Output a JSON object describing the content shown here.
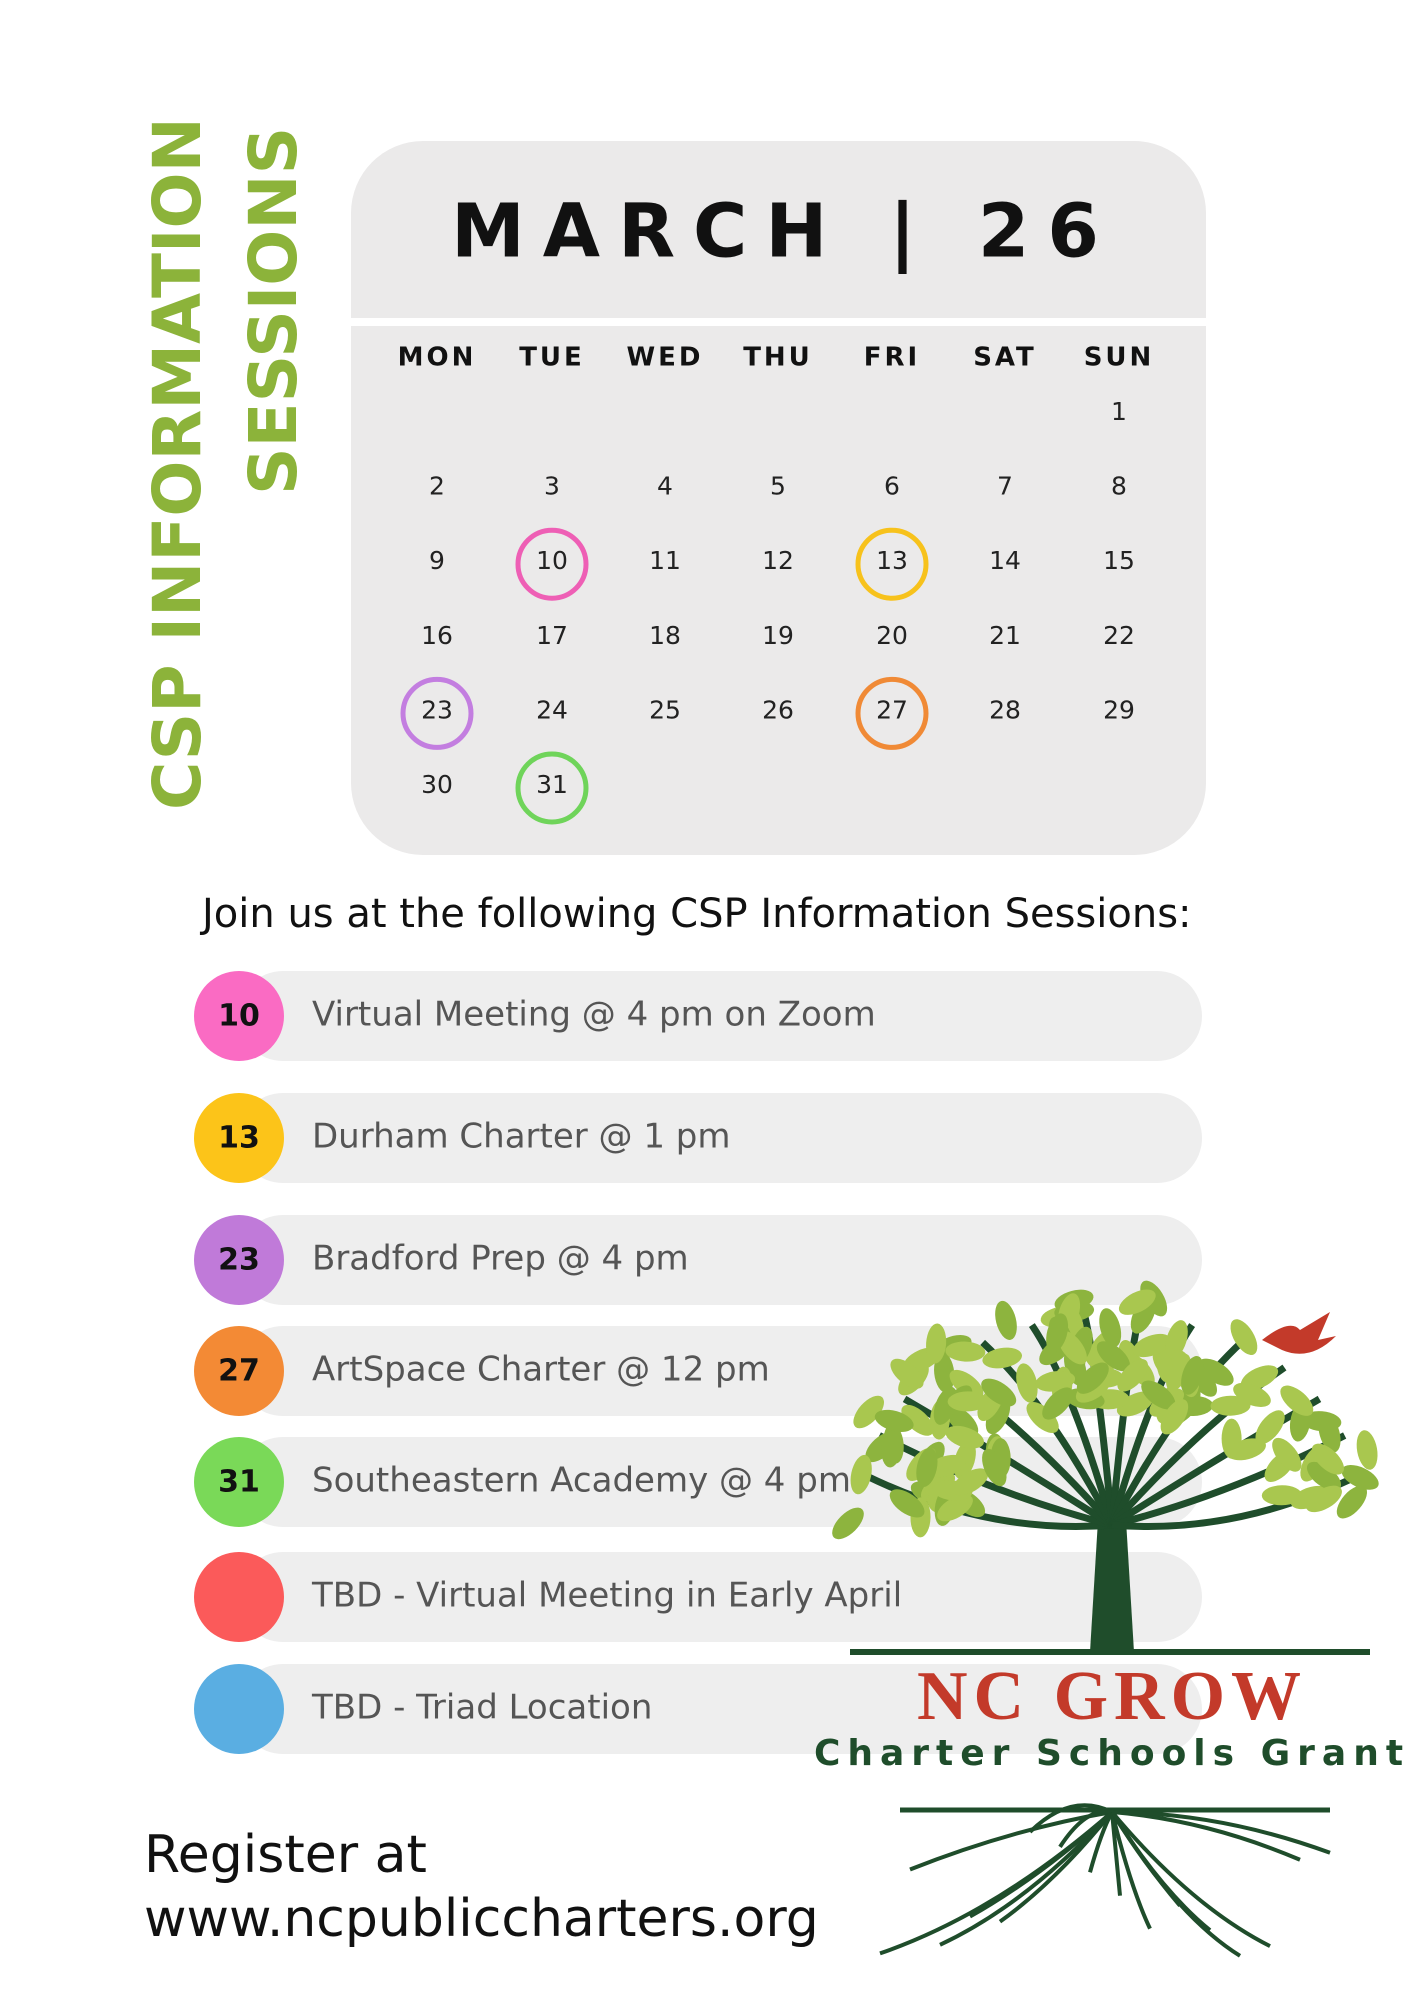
{
  "side_title": [
    "CSP INFORMATION",
    "SESSIONS"
  ],
  "calendar": {
    "title": "MARCH | 26",
    "weekdays": [
      "MON",
      "TUE",
      "WED",
      "THU",
      "FRI",
      "SAT",
      "SUN"
    ],
    "weeks": [
      [
        null,
        null,
        null,
        null,
        null,
        null,
        "1"
      ],
      [
        "2",
        "3",
        "4",
        "5",
        "6",
        "7",
        "8"
      ],
      [
        "9",
        "10",
        "11",
        "12",
        "13",
        "14",
        "15"
      ],
      [
        "16",
        "17",
        "18",
        "19",
        "20",
        "21",
        "22"
      ],
      [
        "23",
        "24",
        "25",
        "26",
        "27",
        "28",
        "29"
      ],
      [
        "30",
        "31",
        null,
        null,
        null,
        null,
        null
      ]
    ],
    "rings": [
      [
        null,
        null,
        null,
        null,
        null,
        null,
        null
      ],
      [
        null,
        null,
        null,
        null,
        null,
        null,
        null
      ],
      [
        null,
        "#ee5fb5",
        null,
        null,
        "#f7c21c",
        null,
        null
      ],
      [
        null,
        null,
        null,
        null,
        null,
        null,
        null
      ],
      [
        "#c37ee0",
        null,
        null,
        null,
        "#f08a36",
        null,
        null
      ],
      [
        null,
        "#6fd45a",
        null,
        null,
        null,
        null,
        null
      ]
    ]
  },
  "intro": "Join us at the following CSP Information Sessions:",
  "sessions": [
    {
      "day": "10",
      "text": "Virtual Meeting @ 4 pm on Zoom",
      "color": "#fa6bc3"
    },
    {
      "day": "13",
      "text": "Durham Charter @ 1 pm",
      "color": "#fcc419"
    },
    {
      "day": "23",
      "text": "Bradford Prep @ 4 pm",
      "color": "#c07ad9"
    },
    {
      "day": "27",
      "text": "ArtSpace Charter @ 12 pm",
      "color": "#f38a35"
    },
    {
      "day": "31",
      "text": "Southeastern Academy @ 4 pm",
      "color": "#7ad958"
    },
    {
      "text": "TBD - Virtual Meeting in Early April",
      "color": "#fb5a5a"
    },
    {
      "text": "TBD - Triad Location",
      "color": "#5aaee2"
    }
  ],
  "register": [
    "Register at",
    "www.ncpubliccharters.org"
  ],
  "logo": {
    "name": "NC GROW",
    "tagline": "Charter Schools Grant"
  }
}
